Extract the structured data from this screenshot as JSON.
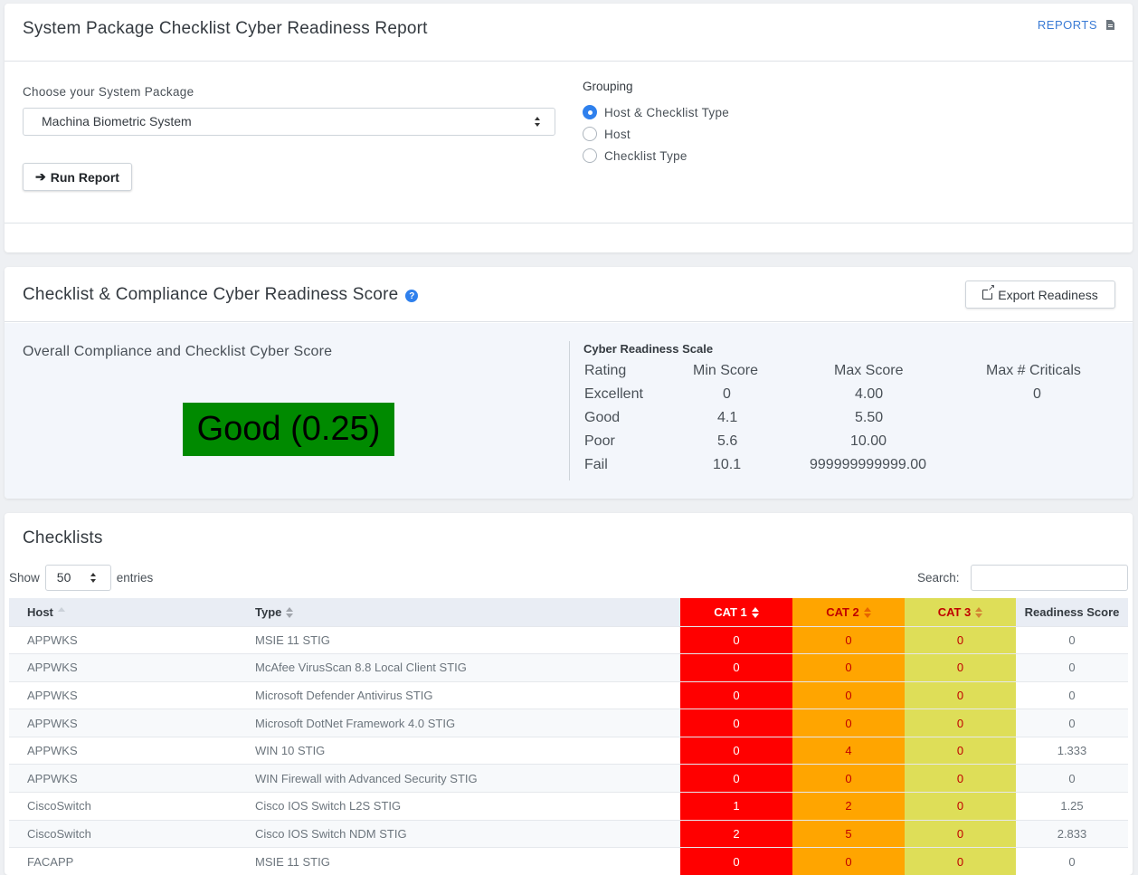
{
  "report": {
    "title": "System Package Checklist Cyber Readiness Report",
    "reports_link": "REPORTS",
    "package_label": "Choose your System Package",
    "package_value": "Machina Biometric System",
    "run_button": "Run Report",
    "grouping_label": "Grouping",
    "grouping_options": [
      "Host & Checklist Type",
      "Host",
      "Checklist Type"
    ],
    "grouping_selected": "Host & Checklist Type"
  },
  "score": {
    "title": "Checklist & Compliance Cyber Readiness Score",
    "export_button": "Export Readiness",
    "overall_label": "Overall Compliance and Checklist Cyber Score",
    "overall_value": "Good (0.25)",
    "overall_color": "#008a00",
    "scale_title": "Cyber Readiness Scale",
    "scale_headers": [
      "Rating",
      "Min Score",
      "Max Score",
      "Max # Criticals"
    ],
    "scale_rows": [
      [
        "Excellent",
        "0",
        "4.00",
        "0"
      ],
      [
        "Good",
        "4.1",
        "5.50",
        ""
      ],
      [
        "Poor",
        "5.6",
        "10.00",
        ""
      ],
      [
        "Fail",
        "10.1",
        "999999999999.00",
        ""
      ]
    ]
  },
  "checklists": {
    "title": "Checklists",
    "show_label": "Show",
    "entries_value": "50",
    "entries_label": "entries",
    "search_label": "Search:",
    "columns": [
      "Host",
      "Type",
      "CAT 1",
      "CAT 2",
      "CAT 3",
      "Readiness Score"
    ],
    "rows": [
      [
        "APPWKS",
        "MSIE 11 STIG",
        "0",
        "0",
        "0",
        "0"
      ],
      [
        "APPWKS",
        "McAfee VirusScan 8.8 Local Client STIG",
        "0",
        "0",
        "0",
        "0"
      ],
      [
        "APPWKS",
        "Microsoft Defender Antivirus STIG",
        "0",
        "0",
        "0",
        "0"
      ],
      [
        "APPWKS",
        "Microsoft DotNet Framework 4.0 STIG",
        "0",
        "0",
        "0",
        "0"
      ],
      [
        "APPWKS",
        "WIN 10 STIG",
        "0",
        "4",
        "0",
        "1.333"
      ],
      [
        "APPWKS",
        "WIN Firewall with Advanced Security STIG",
        "0",
        "0",
        "0",
        "0"
      ],
      [
        "CiscoSwitch",
        "Cisco IOS Switch L2S STIG",
        "1",
        "2",
        "0",
        "1.25"
      ],
      [
        "CiscoSwitch",
        "Cisco IOS Switch NDM STIG",
        "2",
        "5",
        "0",
        "2.833"
      ],
      [
        "FACAPP",
        "MSIE 11 STIG",
        "0",
        "0",
        "0",
        "0"
      ]
    ],
    "colors": {
      "cat1": "#ff0000",
      "cat2": "#ffa500",
      "cat3": "#dede58"
    }
  }
}
